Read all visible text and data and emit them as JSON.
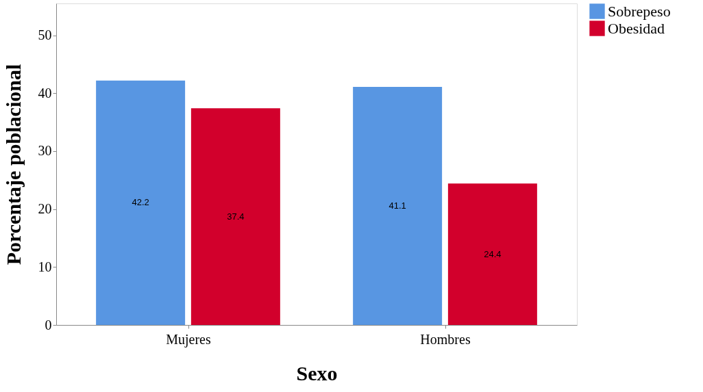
{
  "chart_data": {
    "type": "bar",
    "xlabel": "Sexo",
    "ylabel": "Porcentaje poblacional",
    "categories": [
      "Mujeres",
      "Hombres"
    ],
    "series": [
      {
        "name": "Sobrepeso",
        "color": "#5896e2",
        "values": [
          42.2,
          41.1
        ]
      },
      {
        "name": "Obesidad",
        "color": "#d2002c",
        "values": [
          37.4,
          24.4
        ]
      }
    ],
    "ylim": [
      0,
      55.5
    ],
    "yticks": [
      0,
      10,
      20,
      30,
      40,
      50
    ],
    "grid": false,
    "legend": "top right",
    "data_labels": true
  }
}
